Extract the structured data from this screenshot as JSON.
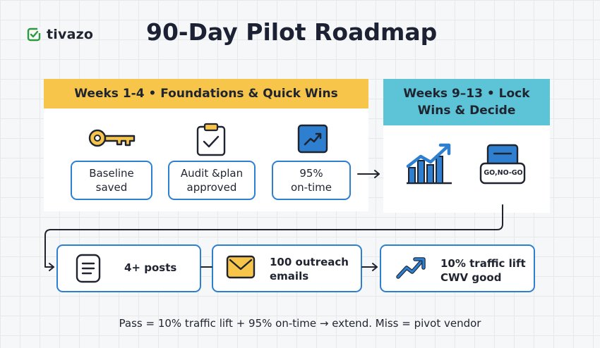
{
  "logo": {
    "text": "tivazo",
    "icon": "tivazo-logo-icon"
  },
  "title": "90-Day Pilot Roadmap",
  "phases": {
    "foundations": {
      "header": "Weeks 1-4 • Foundations & Quick Wins",
      "items": [
        {
          "icon": "key-icon",
          "line1": "Baseline",
          "line2": "saved"
        },
        {
          "icon": "clipboard-check-icon",
          "line1": "Audit &plan",
          "line2": "approved"
        },
        {
          "icon": "trend-square-icon",
          "line1": "95%",
          "line2": "on-time"
        }
      ]
    },
    "lock": {
      "header": "Weeks 9–13 • Lock Wins & Decide",
      "chart_icon": "bar-chart-up-icon",
      "gate_label": "GO,NO-GO"
    }
  },
  "bottom_row": [
    {
      "icon": "document-icon",
      "line1": "4+ posts",
      "line2": ""
    },
    {
      "icon": "envelope-icon",
      "line1": "100 outreach",
      "line2": "emails"
    },
    {
      "icon": "trend-up-icon",
      "line1": "10% traffic lift",
      "line2": "CWV good"
    }
  ],
  "footer": "Pass = 10% traffic lift + 95% on-time → extend. Miss = pivot vendor",
  "colors": {
    "accent_blue": "#2f7fd1",
    "header_yellow": "#f7c54a",
    "header_teal": "#5cc4d6",
    "title_dark": "#1c2233",
    "logo_green": "#2e9a3e"
  }
}
